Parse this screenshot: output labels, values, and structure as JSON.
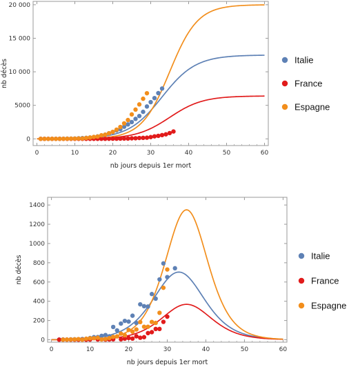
{
  "chart_data": [
    {
      "type": "scatter",
      "xlabel": "nb jours depuis 1er mort",
      "ylabel": "nb décès",
      "xlim": [
        -1,
        61
      ],
      "ylim": [
        -1000,
        20500
      ],
      "xticks": [
        0,
        10,
        20,
        30,
        40,
        50,
        60
      ],
      "yticks": [
        0,
        5000,
        10000,
        15000,
        20000
      ],
      "ytick_labels": [
        "0",
        "5000",
        "10 000",
        "15 000",
        "20 000"
      ],
      "legend": "right",
      "series": [
        {
          "name": "Italie",
          "color": "#5e81b5",
          "points": [
            [
              1,
              2
            ],
            [
              2,
              3
            ],
            [
              3,
              7
            ],
            [
              4,
              10
            ],
            [
              5,
              12
            ],
            [
              6,
              17
            ],
            [
              7,
              21
            ],
            [
              8,
              29
            ],
            [
              9,
              34
            ],
            [
              10,
              52
            ],
            [
              11,
              79
            ],
            [
              12,
              107
            ],
            [
              13,
              148
            ],
            [
              14,
              197
            ],
            [
              15,
              233
            ],
            [
              16,
              366
            ],
            [
              17,
              463
            ],
            [
              18,
              631
            ],
            [
              19,
              827
            ],
            [
              20,
              1016
            ],
            [
              21,
              1266
            ],
            [
              22,
              1441
            ],
            [
              23,
              1809
            ],
            [
              24,
              2158
            ],
            [
              25,
              2503
            ],
            [
              26,
              2978
            ],
            [
              27,
              3405
            ],
            [
              28,
              4032
            ],
            [
              29,
              4825
            ],
            [
              30,
              5476
            ],
            [
              31,
              6077
            ],
            [
              32,
              6820
            ],
            [
              33,
              7503
            ]
          ],
          "fit": {
            "model": "logistic",
            "K": 12500,
            "r": 0.225,
            "t0": 33
          }
        },
        {
          "name": "France",
          "color": "#e11b1b",
          "points": [
            [
              1,
              1
            ],
            [
              2,
              1
            ],
            [
              3,
              1
            ],
            [
              4,
              1
            ],
            [
              5,
              1
            ],
            [
              6,
              1
            ],
            [
              7,
              1
            ],
            [
              8,
              1
            ],
            [
              9,
              2
            ],
            [
              10,
              2
            ],
            [
              11,
              2
            ],
            [
              12,
              2
            ],
            [
              13,
              2
            ],
            [
              14,
              3
            ],
            [
              15,
              4
            ],
            [
              16,
              4
            ],
            [
              17,
              6
            ],
            [
              18,
              9
            ],
            [
              19,
              11
            ],
            [
              20,
              19
            ],
            [
              21,
              19
            ],
            [
              22,
              33
            ],
            [
              23,
              48
            ],
            [
              24,
              48
            ],
            [
              25,
              79
            ],
            [
              26,
              91
            ],
            [
              27,
              127
            ],
            [
              28,
              148
            ],
            [
              29,
              175
            ],
            [
              30,
              264
            ],
            [
              31,
              372
            ],
            [
              32,
              450
            ],
            [
              33,
              562
            ],
            [
              34,
              674
            ],
            [
              35,
              860
            ],
            [
              36,
              1100
            ]
          ],
          "fit": {
            "model": "logistic",
            "K": 6400,
            "r": 0.23,
            "t0": 35
          }
        },
        {
          "name": "Espagne",
          "color": "#f28e1c",
          "points": [
            [
              1,
              1
            ],
            [
              2,
              1
            ],
            [
              3,
              1
            ],
            [
              4,
              2
            ],
            [
              5,
              3
            ],
            [
              6,
              5
            ],
            [
              7,
              10
            ],
            [
              8,
              17
            ],
            [
              9,
              28
            ],
            [
              10,
              35
            ],
            [
              11,
              54
            ],
            [
              12,
              55
            ],
            [
              13,
              133
            ],
            [
              14,
              195
            ],
            [
              15,
              289
            ],
            [
              16,
              342
            ],
            [
              17,
              533
            ],
            [
              18,
              623
            ],
            [
              19,
              830
            ],
            [
              20,
              1043
            ],
            [
              21,
              1375
            ],
            [
              22,
              1772
            ],
            [
              23,
              2311
            ],
            [
              24,
              2808
            ],
            [
              25,
              3647
            ],
            [
              26,
              4365
            ],
            [
              27,
              5138
            ],
            [
              28,
              5982
            ],
            [
              29,
              6803
            ]
          ],
          "fit": {
            "model": "logistic",
            "K": 20000,
            "r": 0.27,
            "t0": 35
          }
        }
      ]
    },
    {
      "type": "scatter",
      "xlabel": "nb jours depuis 1er mort",
      "ylabel": "nb décès",
      "xlim": [
        -1,
        61
      ],
      "ylim": [
        -25,
        1480
      ],
      "xticks": [
        0,
        10,
        20,
        30,
        40,
        50,
        60
      ],
      "yticks": [
        0,
        200,
        400,
        600,
        800,
        1000,
        1200,
        1400
      ],
      "ytick_labels": [
        "0",
        "200",
        "400",
        "600",
        "800",
        "1000",
        "1200",
        "1400"
      ],
      "legend": "right",
      "series": [
        {
          "name": "Italie",
          "color": "#5e81b5",
          "points": [
            [
              2,
              2
            ],
            [
              3,
              3
            ],
            [
              4,
              2
            ],
            [
              5,
              4
            ],
            [
              6,
              5
            ],
            [
              7,
              4
            ],
            [
              8,
              8
            ],
            [
              9,
              5
            ],
            [
              10,
              18
            ],
            [
              11,
              27
            ],
            [
              12,
              28
            ],
            [
              13,
              41
            ],
            [
              14,
              49
            ],
            [
              15,
              36
            ],
            [
              16,
              133
            ],
            [
              17,
              97
            ],
            [
              18,
              168
            ],
            [
              19,
              196
            ],
            [
              20,
              189
            ],
            [
              21,
              250
            ],
            [
              22,
              175
            ],
            [
              23,
              368
            ],
            [
              24,
              349
            ],
            [
              25,
              345
            ],
            [
              26,
              475
            ],
            [
              27,
              427
            ],
            [
              28,
              627
            ],
            [
              29,
              793
            ],
            [
              30,
              651
            ],
            [
              32,
              743
            ]
          ],
          "fit": {
            "model": "logistic-derivative",
            "K": 12500,
            "r": 0.225,
            "t0": 33
          }
        },
        {
          "name": "France",
          "color": "#e11b1b",
          "points": [
            [
              2,
              1
            ],
            [
              3,
              1
            ],
            [
              4,
              1
            ],
            [
              5,
              1
            ],
            [
              6,
              1
            ],
            [
              7,
              1
            ],
            [
              8,
              2
            ],
            [
              9,
              1
            ],
            [
              10,
              2
            ],
            [
              12,
              3
            ],
            [
              14,
              2
            ],
            [
              15,
              3
            ],
            [
              16,
              5
            ],
            [
              18,
              5
            ],
            [
              19,
              11
            ],
            [
              20,
              18
            ],
            [
              21,
              12
            ],
            [
              22,
              36
            ],
            [
              23,
              21
            ],
            [
              24,
              27
            ],
            [
              25,
              69
            ],
            [
              26,
              79
            ],
            [
              27,
              112
            ],
            [
              28,
              112
            ],
            [
              29,
              186
            ],
            [
              30,
              240
            ]
          ],
          "fit": {
            "model": "logistic-derivative",
            "K": 6400,
            "r": 0.23,
            "t0": 35
          }
        },
        {
          "name": "Espagne",
          "color": "#f28e1c",
          "points": [
            [
              3,
              1
            ],
            [
              4,
              2
            ],
            [
              5,
              3
            ],
            [
              6,
              4
            ],
            [
              7,
              7
            ],
            [
              8,
              1
            ],
            [
              9,
              11
            ],
            [
              10,
              15
            ],
            [
              11,
              16
            ],
            [
              12,
              21
            ],
            [
              13,
              3
            ],
            [
              14,
              8
            ],
            [
              15,
              17
            ],
            [
              16,
              30
            ],
            [
              17,
              35
            ],
            [
              18,
              64
            ],
            [
              19,
              47
            ],
            [
              20,
              102
            ],
            [
              21,
              84
            ],
            [
              22,
              107
            ],
            [
              23,
              184
            ],
            [
              24,
              135
            ],
            [
              25,
              135
            ],
            [
              26,
              185
            ],
            [
              27,
              175
            ],
            [
              28,
              280
            ],
            [
              29,
              540
            ],
            [
              30,
              730
            ]
          ],
          "fit": {
            "model": "logistic-derivative",
            "K": 20000,
            "r": 0.27,
            "t0": 35
          }
        }
      ]
    }
  ]
}
